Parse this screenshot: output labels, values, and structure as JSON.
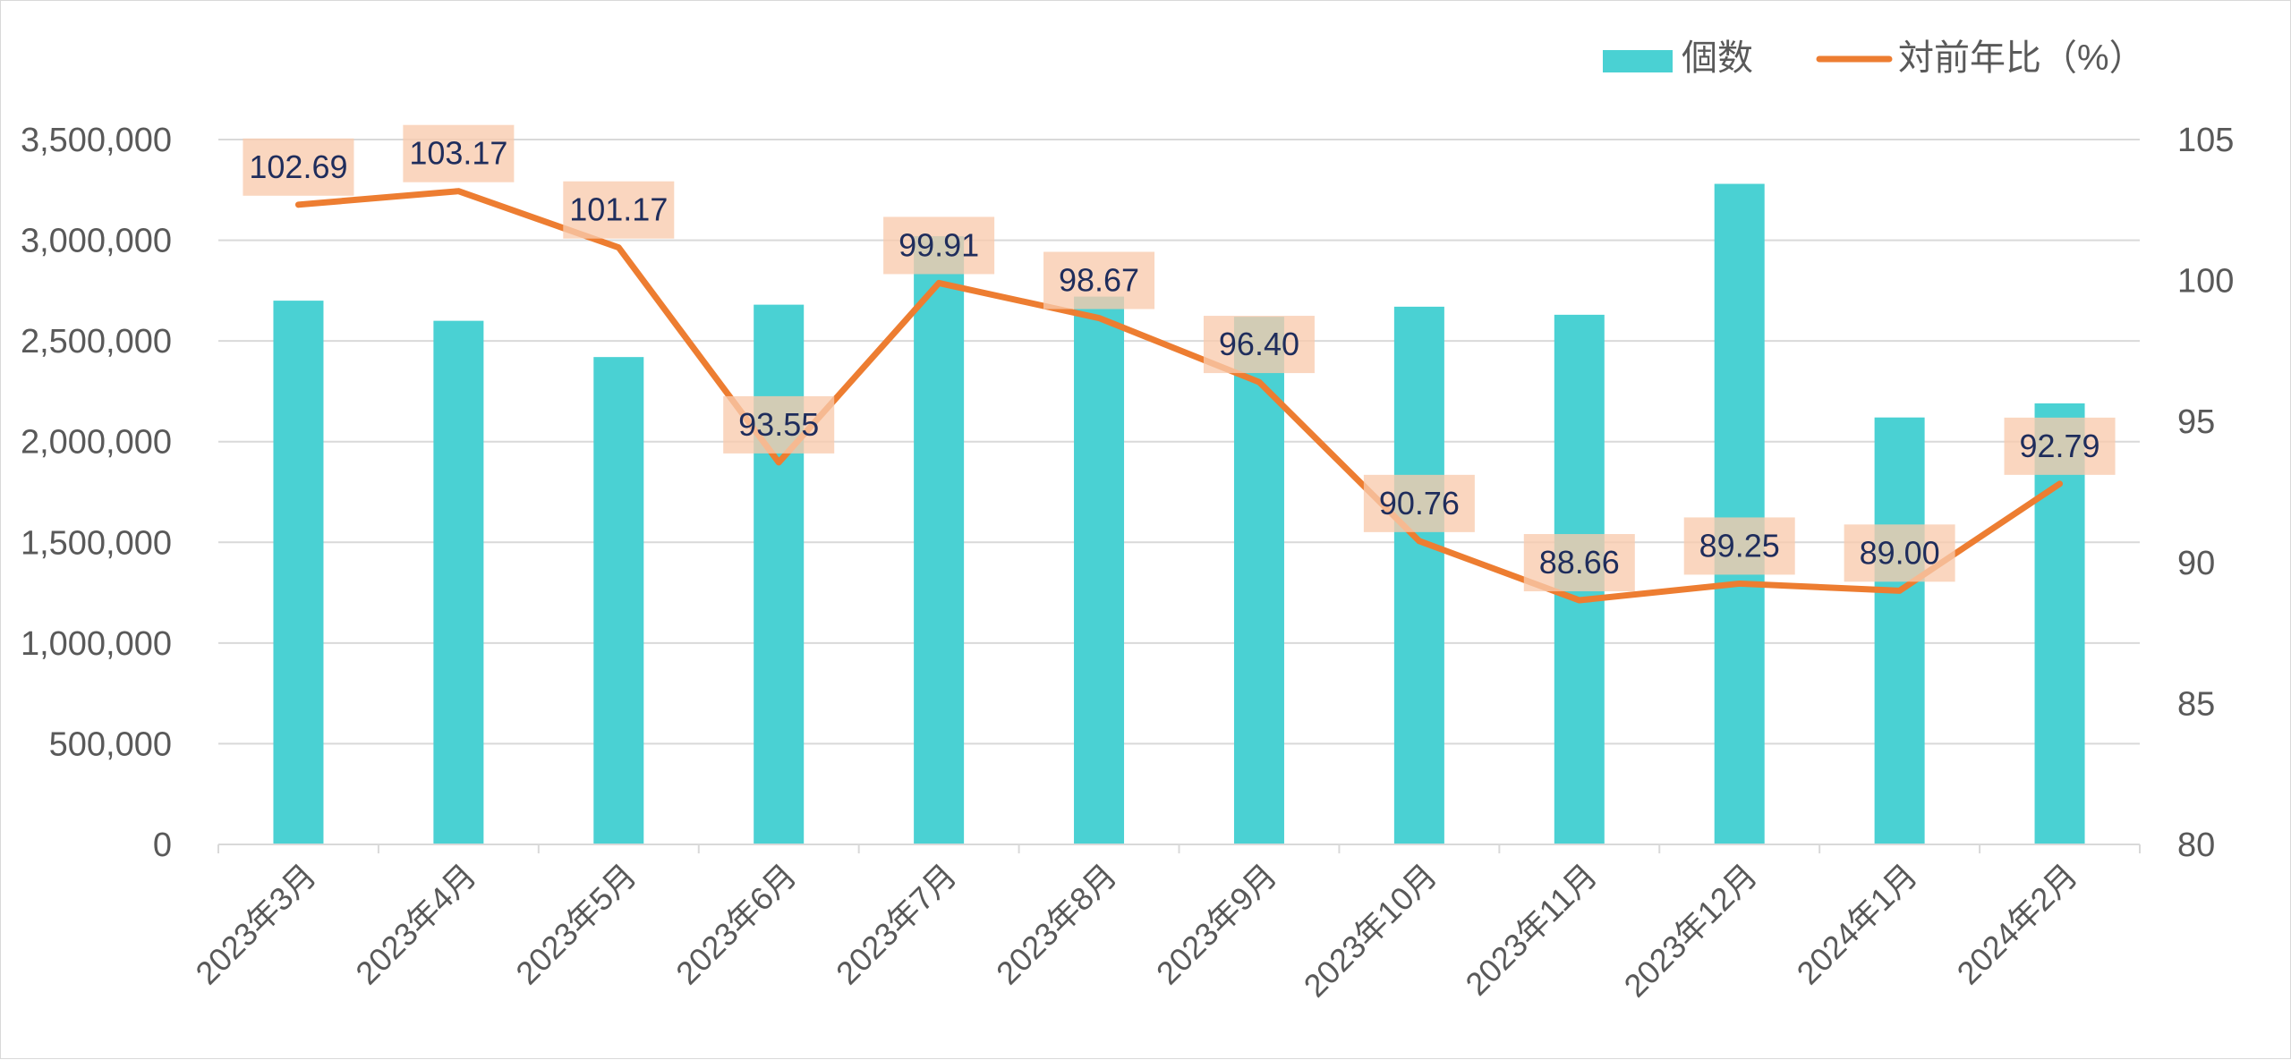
{
  "chart_data": {
    "type": "bar",
    "title": "",
    "categories": [
      "2023年3月",
      "2023年4月",
      "2023年5月",
      "2023年6月",
      "2023年7月",
      "2023年8月",
      "2023年9月",
      "2023年10月",
      "2023年11月",
      "2023年12月",
      "2024年1月",
      "2024年2月"
    ],
    "series": [
      {
        "name": "個数",
        "type": "bar",
        "axis": "left",
        "color": "#4ad1d3",
        "values": [
          2700000,
          2600000,
          2420000,
          2680000,
          3020000,
          2720000,
          2620000,
          2670000,
          2630000,
          3280000,
          2120000,
          2190000
        ]
      },
      {
        "name": "対前年比（%）",
        "type": "line",
        "axis": "right",
        "color": "#ed7d31",
        "values": [
          102.69,
          103.17,
          101.17,
          93.55,
          99.91,
          98.67,
          96.4,
          90.76,
          88.66,
          89.25,
          89.0,
          92.79
        ],
        "data_labels": [
          "102.69",
          "103.17",
          "101.17",
          "93.55",
          "99.91",
          "98.67",
          "96.40",
          "90.76",
          "88.66",
          "89.25",
          "89.00",
          "92.79"
        ]
      }
    ],
    "y_left": {
      "lim": [
        0,
        3500000
      ],
      "ticks": [
        0,
        500000,
        1000000,
        1500000,
        2000000,
        2500000,
        3000000,
        3500000
      ],
      "tick_labels": [
        "0",
        "500,000",
        "1,000,000",
        "1,500,000",
        "2,000,000",
        "2,500,000",
        "3,000,000",
        "3,500,000"
      ]
    },
    "y_right": {
      "lim": [
        80,
        105
      ],
      "ticks": [
        80,
        85,
        90,
        95,
        100,
        105
      ],
      "tick_labels": [
        "80",
        "85",
        "90",
        "95",
        "100",
        "105"
      ]
    },
    "grid": true,
    "legend_position": "top-right",
    "label_box_color": "#f8cbad",
    "label_text_color": "#1f2d5c"
  }
}
